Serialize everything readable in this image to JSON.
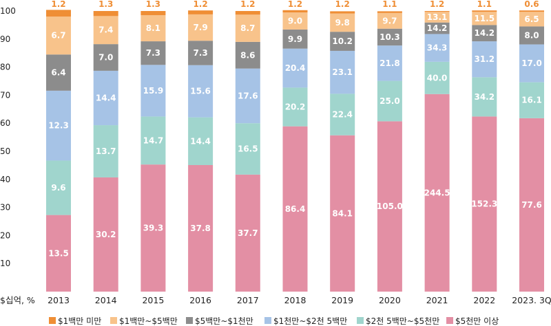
{
  "chart_data": {
    "type": "bar",
    "stacked": true,
    "percent_scale": true,
    "axis_label": "$십억, %",
    "ylim": [
      0,
      100
    ],
    "yticks": [
      10,
      20,
      30,
      40,
      50,
      60,
      70,
      80,
      90,
      100
    ],
    "categories": [
      "2013",
      "2014",
      "2015",
      "2016",
      "2017",
      "2018",
      "2019",
      "2020",
      "2021",
      "2022",
      "2023. 3Q"
    ],
    "series": [
      {
        "name": "$5천만 이상",
        "color": "#e38fa4",
        "label_color": "#ffffff",
        "labels": [
          "13.5",
          "30.2",
          "39.3",
          "37.8",
          "37.7",
          "86.4",
          "84.1",
          "105.0",
          "244.5",
          "152.3",
          "77.6"
        ],
        "share": [
          27.3,
          40.7,
          45.3,
          45.1,
          41.7,
          58.9,
          55.7,
          60.7,
          70.4,
          62.4,
          61.8
        ]
      },
      {
        "name": "$2천 5백만~$5천만",
        "color": "#a0d5cd",
        "label_color": "#ffffff",
        "labels": [
          "9.6",
          "13.7",
          "14.7",
          "14.4",
          "16.5",
          "20.2",
          "22.4",
          "25.0",
          "40.0",
          "34.2",
          "16.1"
        ],
        "share": [
          19.4,
          18.6,
          17.1,
          17.0,
          18.3,
          13.8,
          14.8,
          14.4,
          11.5,
          14.0,
          12.8
        ]
      },
      {
        "name": "$1천만~$2천 5백만",
        "color": "#a6c3e6",
        "label_color": "#ffffff",
        "labels": [
          "12.3",
          "14.4",
          "15.9",
          "15.6",
          "17.6",
          "20.4",
          "23.1",
          "21.8",
          "34.3",
          "31.2",
          "17.0"
        ],
        "share": [
          24.9,
          19.4,
          18.4,
          18.6,
          19.5,
          13.9,
          15.3,
          12.6,
          9.9,
          12.8,
          13.5
        ]
      },
      {
        "name": "$5백만~$1천만",
        "color": "#8c8c8c",
        "label_color": "#ffffff",
        "labels": [
          "6.4",
          "7.0",
          "7.3",
          "7.3",
          "8.6",
          "9.9",
          "10.2",
          "10.3",
          "14.2",
          "14.2",
          "8.0"
        ],
        "share": [
          12.9,
          9.5,
          8.4,
          8.7,
          9.5,
          6.8,
          6.8,
          6.0,
          4.1,
          5.8,
          6.4
        ]
      },
      {
        "name": "$1백만~$5백만",
        "color": "#f8c38b",
        "label_color": "#ffffff",
        "labels": [
          "6.7",
          "7.4",
          "8.1",
          "7.9",
          "8.7",
          "9.0",
          "9.8",
          "9.7",
          "13.1",
          "11.5",
          "6.5"
        ],
        "share": [
          13.5,
          10.0,
          9.3,
          9.4,
          9.7,
          6.1,
          6.5,
          5.6,
          3.8,
          4.7,
          5.2
        ]
      },
      {
        "name": "$1백만 미만",
        "color": "#ef8e35",
        "label_color": "#ef8e35",
        "labels": [
          "1.2",
          "1.3",
          "1.3",
          "1.2",
          "1.2",
          "1.2",
          "1.2",
          "1.1",
          "1.2",
          "1.1",
          "0.6"
        ],
        "share": [
          2.4,
          1.8,
          1.5,
          1.4,
          1.3,
          0.8,
          0.8,
          0.6,
          0.3,
          0.5,
          0.5
        ]
      }
    ],
    "legend": [
      "$1백만 미만",
      "$1백만~$5백만",
      "$5백만~$1천만",
      "$1천만~$2천 5백만",
      "$2천 5백만~$5천만",
      "$5천만 이상"
    ],
    "legend_position": "bottom"
  }
}
